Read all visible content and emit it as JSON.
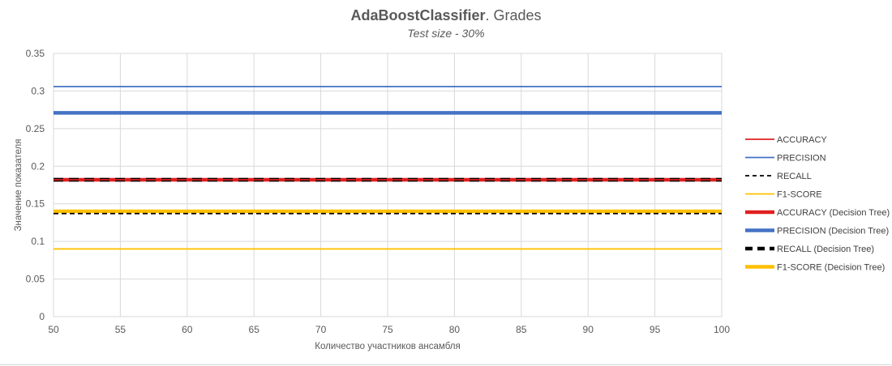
{
  "chart_data": {
    "type": "line",
    "title_bold": "AdaBoostClassifier",
    "title_rest": ". Grades",
    "subtitle": "Test size - 30%",
    "xlabel": "Количество участников ансамбля",
    "ylabel": "Значение показателя",
    "xlim": [
      50,
      100
    ],
    "ylim": [
      0,
      0.35
    ],
    "x_ticks": [
      "50",
      "55",
      "60",
      "65",
      "70",
      "75",
      "80",
      "85",
      "90",
      "95",
      "100"
    ],
    "y_ticks": [
      "0",
      "0.05",
      "0.1",
      "0.15",
      "0.2",
      "0.25",
      "0.3",
      "0.35"
    ],
    "grid": true,
    "legend_position": "right",
    "x": [
      50,
      100
    ],
    "series": [
      {
        "name": "ACCURACY",
        "values": [
          0.182,
          0.182
        ],
        "color": "#e02020",
        "style": "solid-thin"
      },
      {
        "name": "PRECISION",
        "values": [
          0.306,
          0.306
        ],
        "color": "#4472c4",
        "style": "solid-thin"
      },
      {
        "name": "RECALL",
        "values": [
          0.137,
          0.137
        ],
        "color": "#000000",
        "style": "dashed-thin"
      },
      {
        "name": "F1-SCORE",
        "values": [
          0.09,
          0.09
        ],
        "color": "#ffc000",
        "style": "solid-thin"
      },
      {
        "name": "ACCURACY (Decision Tree)",
        "values": [
          0.182,
          0.182
        ],
        "color": "#e02020",
        "style": "solid-thick"
      },
      {
        "name": "PRECISION (Decision Tree)",
        "values": [
          0.271,
          0.271
        ],
        "color": "#4472c4",
        "style": "solid-thick"
      },
      {
        "name": "RECALL (Decision Tree)",
        "values": [
          0.182,
          0.182
        ],
        "color": "#000000",
        "style": "dashed-thick"
      },
      {
        "name": "F1-SCORE (Decision Tree)",
        "values": [
          0.14,
          0.14
        ],
        "color": "#ffc000",
        "style": "solid-thick"
      }
    ]
  }
}
